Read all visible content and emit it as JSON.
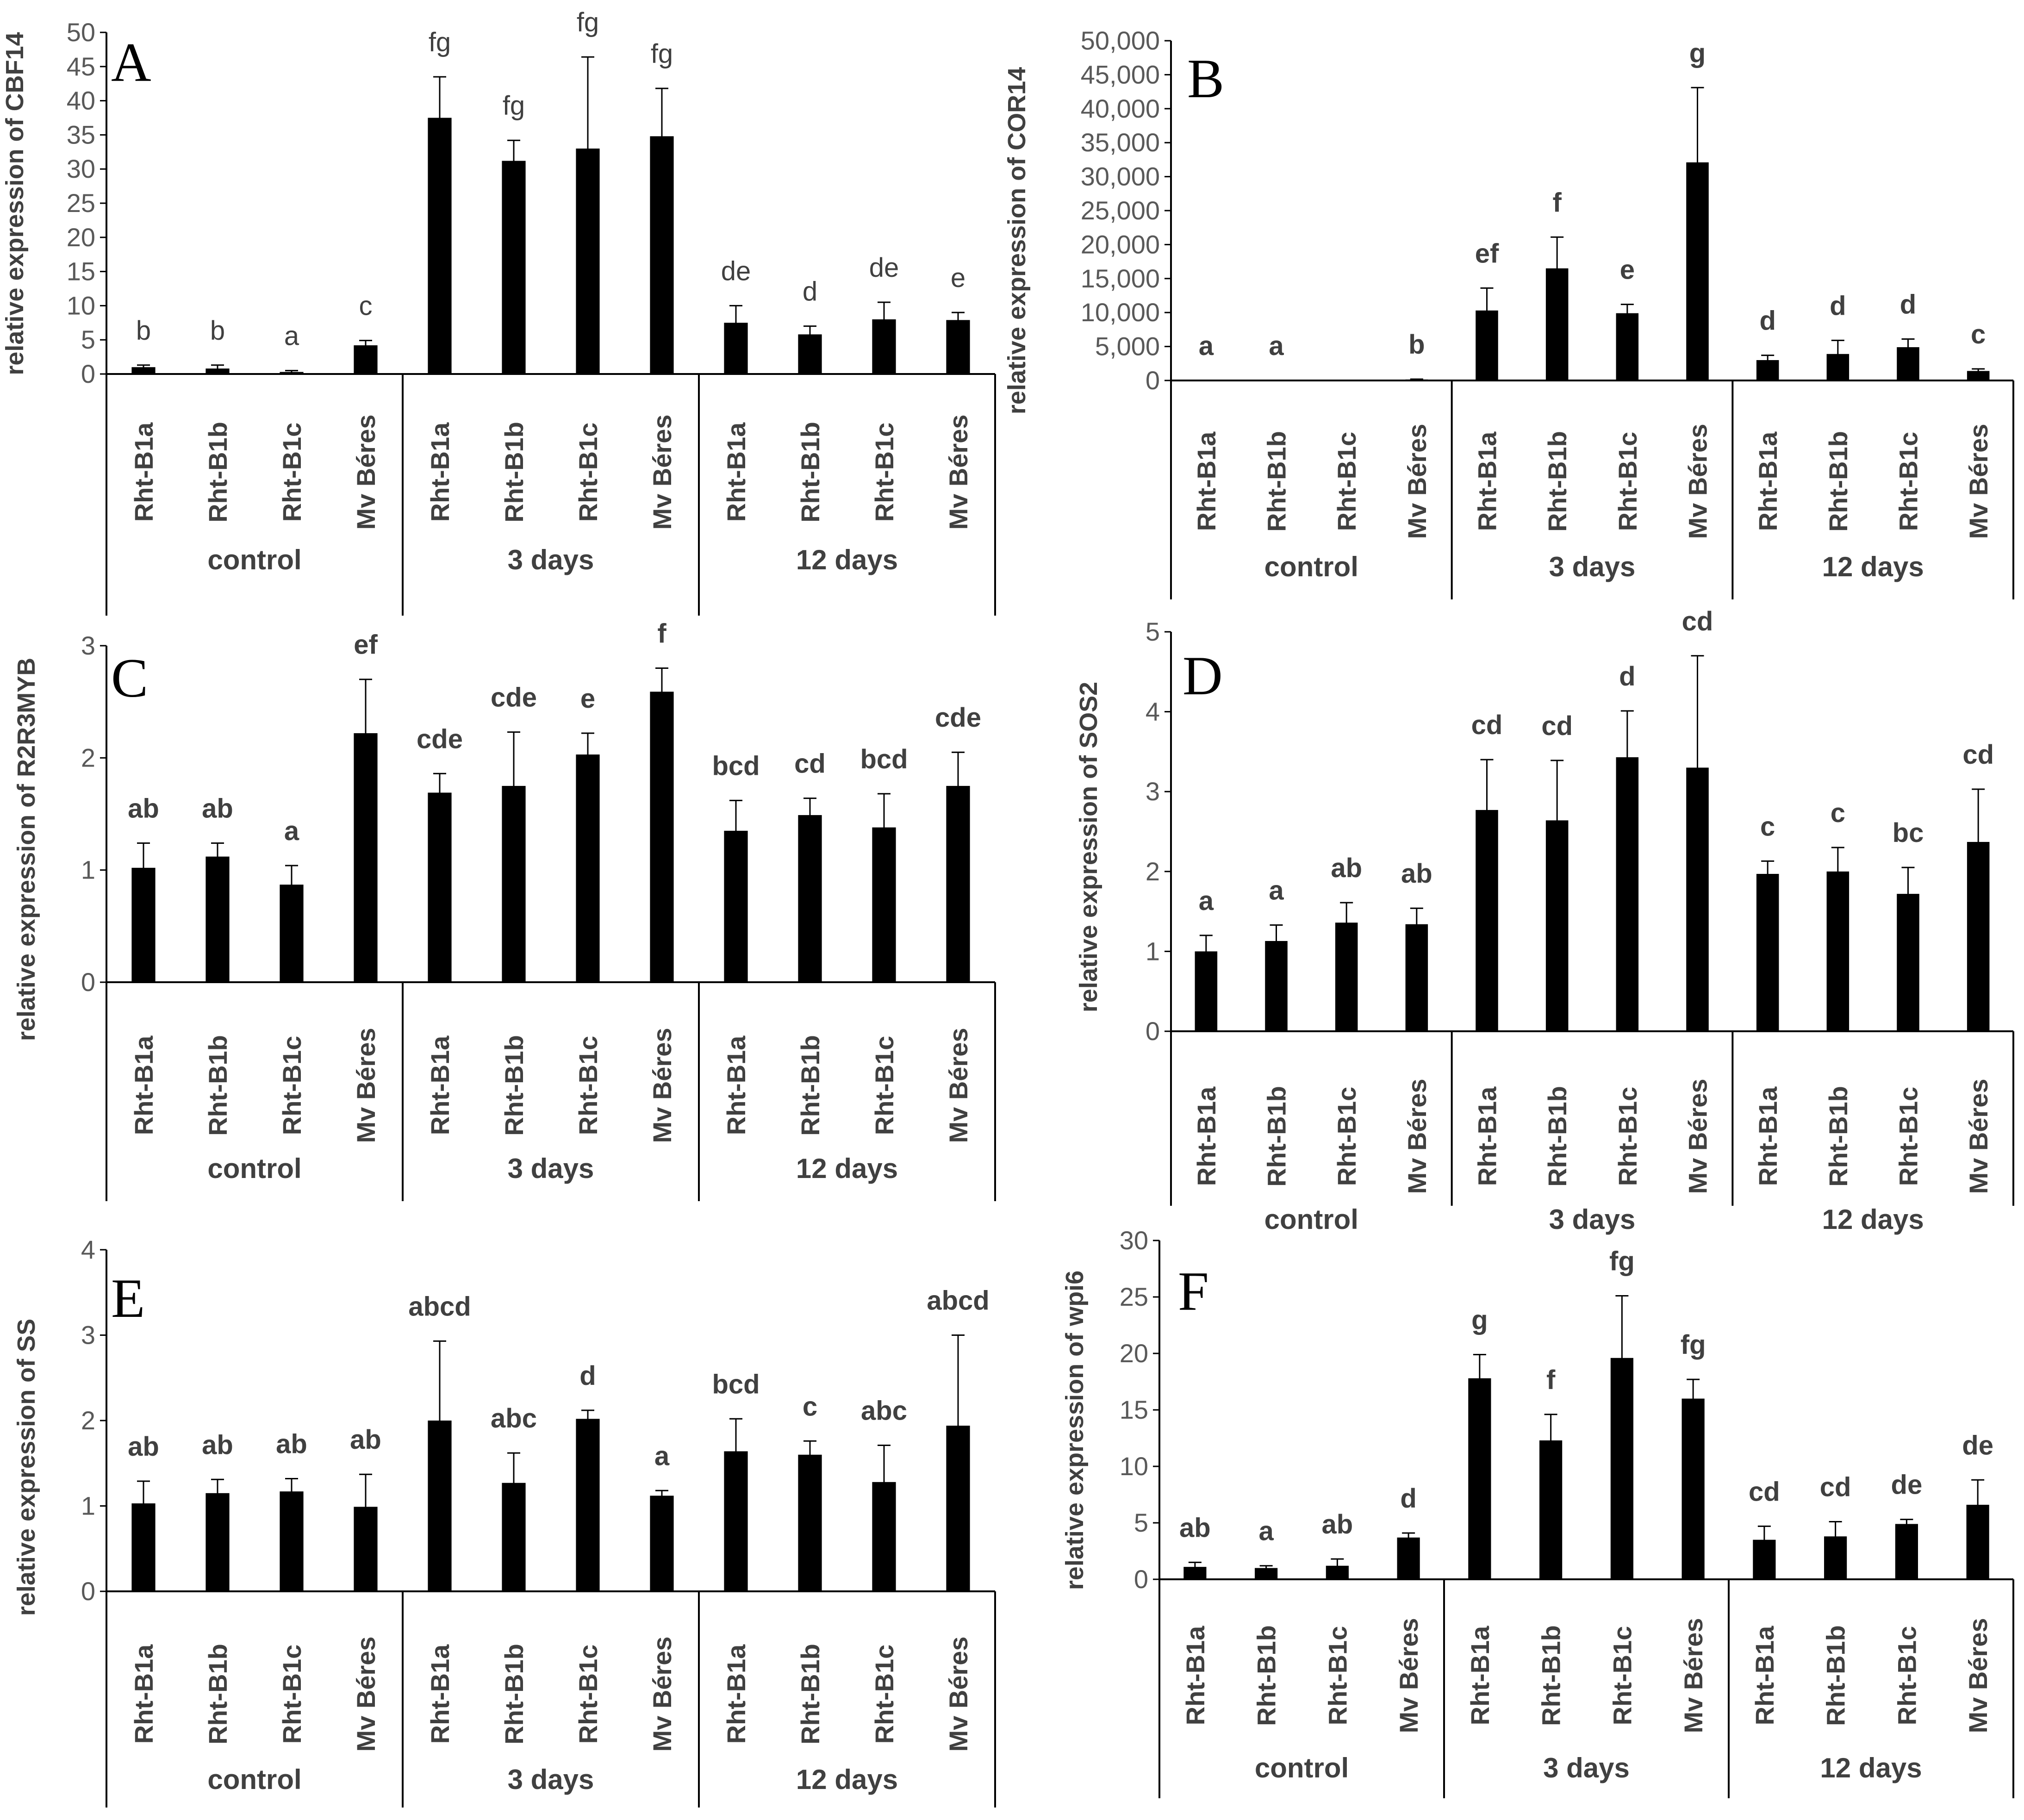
{
  "colors": {
    "bar": "#000000",
    "axis": "#000000",
    "text": "#404040"
  },
  "chart_data": [
    {
      "type": "bar",
      "panel": "A",
      "ylabel": "relative expression of CBF14",
      "ylim": [
        0,
        50
      ],
      "yticks": [
        0,
        5,
        10,
        15,
        20,
        25,
        30,
        35,
        40,
        45,
        50
      ],
      "ytick_labels": [
        "0",
        "5",
        "10",
        "15",
        "20",
        "25",
        "30",
        "35",
        "40",
        "45",
        "50"
      ],
      "letters_bold": false,
      "groups": [
        "control",
        "3 days",
        "12 days"
      ],
      "categories": [
        "Rht-B1a",
        "Rht-B1b",
        "Rht-B1c",
        "Mv Béres",
        "Rht-B1a",
        "Rht-B1b",
        "Rht-B1c",
        "Mv Béres",
        "Rht-B1a",
        "Rht-B1b",
        "Rht-B1c",
        "Mv Béres"
      ],
      "values": [
        1.0,
        0.8,
        0.3,
        4.2,
        37.5,
        31.2,
        33.0,
        34.8,
        7.5,
        5.8,
        8.0,
        7.9
      ],
      "errors": [
        0.3,
        0.5,
        0.2,
        0.7,
        6.0,
        3.0,
        13.4,
        7.0,
        2.5,
        1.2,
        2.5,
        1.1
      ],
      "letters": [
        "b",
        "b",
        "a",
        "c",
        "fg",
        "fg",
        "fg",
        "fg",
        "de",
        "d",
        "de",
        "e"
      ]
    },
    {
      "type": "bar",
      "panel": "B",
      "ylabel": "relative expression of COR14",
      "ylim": [
        0,
        50000
      ],
      "yticks": [
        0,
        5000,
        10000,
        15000,
        20000,
        25000,
        30000,
        35000,
        40000,
        45000,
        50000
      ],
      "ytick_labels": [
        "0",
        "5,000",
        "10,000",
        "15,000",
        "20,000",
        "25,000",
        "30,000",
        "35,000",
        "40,000",
        "45,000",
        "50,000"
      ],
      "letters_bold": true,
      "groups": [
        "control",
        "3 days",
        "12 days"
      ],
      "categories": [
        "Rht-B1a",
        "Rht-B1b",
        "Rht-B1c",
        "Mv Béres",
        "Rht-B1a",
        "Rht-B1b",
        "Rht-B1c",
        "Mv Béres",
        "Rht-B1a",
        "Rht-B1b",
        "Rht-B1c",
        "Mv Béres"
      ],
      "values": [
        0,
        0,
        0,
        150,
        10300,
        16500,
        9900,
        32100,
        3000,
        3900,
        4900,
        1400
      ],
      "errors": [
        0,
        0,
        0,
        50,
        3300,
        4600,
        1300,
        11000,
        700,
        2000,
        1200,
        300
      ],
      "letters": [
        "a",
        "a",
        "",
        "b",
        "ef",
        "f",
        "e",
        "g",
        "d",
        "d",
        "d",
        "c"
      ]
    },
    {
      "type": "bar",
      "panel": "C",
      "ylabel": "relative expression of R2R3MYB",
      "ylim": [
        0,
        3
      ],
      "yticks": [
        0,
        1,
        2,
        3
      ],
      "ytick_labels": [
        "0",
        "1",
        "2",
        "3"
      ],
      "letters_bold": true,
      "groups": [
        "control",
        "3 days",
        "12 days"
      ],
      "categories": [
        "Rht-B1a",
        "Rht-B1b",
        "Rht-B1c",
        "Mv Béres",
        "Rht-B1a",
        "Rht-B1b",
        "Rht-B1c",
        "Mv Béres",
        "Rht-B1a",
        "Rht-B1b",
        "Rht-B1c",
        "Mv Béres"
      ],
      "values": [
        1.02,
        1.12,
        0.87,
        2.22,
        1.69,
        1.75,
        2.03,
        2.59,
        1.35,
        1.49,
        1.38,
        1.75
      ],
      "errors": [
        0.22,
        0.12,
        0.17,
        0.48,
        0.17,
        0.48,
        0.19,
        0.21,
        0.27,
        0.15,
        0.3,
        0.3
      ],
      "letters": [
        "ab",
        "ab",
        "a",
        "ef",
        "cde",
        "cde",
        "e",
        "f",
        "bcd",
        "cd",
        "bcd",
        "cde"
      ]
    },
    {
      "type": "bar",
      "panel": "D",
      "ylabel": "relative expression of SOS2",
      "ylim": [
        0,
        5
      ],
      "yticks": [
        0,
        1,
        2,
        3,
        4,
        5
      ],
      "ytick_labels": [
        "0",
        "1",
        "2",
        "3",
        "4",
        "5"
      ],
      "letters_bold": true,
      "groups": [
        "control",
        "3 days",
        "12 days"
      ],
      "categories": [
        "Rht-B1a",
        "Rht-B1b",
        "Rht-B1c",
        "Mv Béres",
        "Rht-B1a",
        "Rht-B1b",
        "Rht-B1c",
        "Mv Béres",
        "Rht-B1a",
        "Rht-B1b",
        "Rht-B1c",
        "Mv Béres"
      ],
      "values": [
        1.0,
        1.13,
        1.36,
        1.34,
        2.77,
        2.64,
        3.43,
        3.3,
        1.97,
        2.0,
        1.72,
        2.37
      ],
      "errors": [
        0.2,
        0.2,
        0.25,
        0.2,
        0.63,
        0.75,
        0.58,
        1.4,
        0.16,
        0.3,
        0.33,
        0.66
      ],
      "letters": [
        "a",
        "a",
        "ab",
        "ab",
        "cd",
        "cd",
        "d",
        "cd",
        "c",
        "c",
        "bc",
        "cd"
      ]
    },
    {
      "type": "bar",
      "panel": "E",
      "ylabel": "relative expression of SS",
      "ylim": [
        0,
        4
      ],
      "yticks": [
        0,
        1,
        2,
        3,
        4
      ],
      "ytick_labels": [
        "0",
        "1",
        "2",
        "3",
        "4"
      ],
      "letters_bold": true,
      "groups": [
        "control",
        "3 days",
        "12 days"
      ],
      "categories": [
        "Rht-B1a",
        "Rht-B1b",
        "Rht-B1c",
        "Mv Béres",
        "Rht-B1a",
        "Rht-B1b",
        "Rht-B1c",
        "Mv Béres",
        "Rht-B1a",
        "Rht-B1b",
        "Rht-B1c",
        "Mv Béres"
      ],
      "values": [
        1.03,
        1.15,
        1.17,
        0.99,
        2.0,
        1.27,
        2.02,
        1.12,
        1.64,
        1.6,
        1.28,
        1.94
      ],
      "errors": [
        0.26,
        0.16,
        0.15,
        0.38,
        0.93,
        0.35,
        0.1,
        0.06,
        0.38,
        0.16,
        0.43,
        1.06
      ],
      "letters": [
        "ab",
        "ab",
        "ab",
        "ab",
        "abcd",
        "abc",
        "d",
        "a",
        "bcd",
        "c",
        "abc",
        "abcd"
      ]
    },
    {
      "type": "bar",
      "panel": "F",
      "ylabel": "relative expression of wpi6",
      "ylim": [
        0,
        30
      ],
      "yticks": [
        0,
        5,
        10,
        15,
        20,
        25,
        30
      ],
      "ytick_labels": [
        "0",
        "5",
        "10",
        "15",
        "20",
        "25",
        "30"
      ],
      "letters_bold": true,
      "groups": [
        "control",
        "3 days",
        "12 days"
      ],
      "categories": [
        "Rht-B1a",
        "Rht-B1b",
        "Rht-B1c",
        "Mv Béres",
        "Rht-B1a",
        "Rht-B1b",
        "Rht-B1c",
        "Mv Béres",
        "Rht-B1a",
        "Rht-B1b",
        "Rht-B1c",
        "Mv Béres"
      ],
      "values": [
        1.1,
        1.0,
        1.2,
        3.7,
        17.8,
        12.3,
        19.6,
        16.0,
        3.5,
        3.8,
        4.9,
        6.6
      ],
      "errors": [
        0.4,
        0.2,
        0.6,
        0.4,
        2.1,
        2.3,
        5.5,
        1.7,
        1.2,
        1.3,
        0.4,
        2.2
      ],
      "letters": [
        "ab",
        "a",
        "ab",
        "d",
        "g",
        "f",
        "fg",
        "fg",
        "cd",
        "cd",
        "de",
        "de"
      ]
    }
  ]
}
